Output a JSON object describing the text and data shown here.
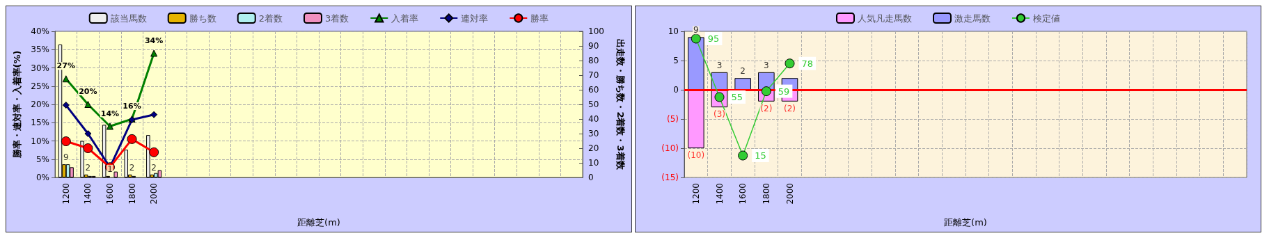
{
  "chart_data": [
    {
      "type": "bar",
      "xlabel": "距離芝(m)",
      "ylabel": "勝率・連対率・入着率(%)",
      "y2label": "出走数・勝ち数・2着数・3着数",
      "categories": [
        "1200",
        "1400",
        "1600",
        "1800",
        "2000",
        null,
        null,
        null,
        null,
        null,
        null,
        null,
        null,
        null,
        null,
        null,
        null,
        null,
        null,
        null,
        null,
        null,
        null,
        null
      ],
      "series": [
        {
          "name": "該当馬数",
          "axis": "y2",
          "color": "#eeeeee",
          "values": [
            91,
            25,
            36,
            19,
            29,
            null,
            null,
            null,
            null,
            null,
            null,
            null,
            null,
            null,
            null,
            null,
            null,
            null,
            null,
            null,
            null,
            null,
            null,
            null
          ]
        },
        {
          "name": "勝ち数",
          "axis": "y2",
          "color": "#e6b400",
          "values": [
            9,
            2,
            1,
            2,
            2,
            null,
            null,
            null,
            null,
            null,
            null,
            null,
            null,
            null,
            null,
            null,
            null,
            null,
            null,
            null,
            null,
            null,
            null,
            null
          ],
          "value_labels": [
            "9",
            "2",
            "1",
            "2",
            "2",
            null,
            null,
            null,
            null,
            null,
            null,
            null,
            null,
            null,
            null,
            null,
            null,
            null,
            null,
            null,
            null,
            null,
            null,
            null
          ]
        },
        {
          "name": "2着数",
          "axis": "y2",
          "color": "#b0f0f0",
          "values": [
            9,
            1,
            0,
            1,
            3,
            null,
            null,
            null,
            null,
            null,
            null,
            null,
            null,
            null,
            null,
            null,
            null,
            null,
            null,
            null,
            null,
            null,
            null,
            null
          ]
        },
        {
          "name": "3着数",
          "axis": "y2",
          "color": "#f090c0",
          "values": [
            7,
            1,
            4,
            0,
            5,
            null,
            null,
            null,
            null,
            null,
            null,
            null,
            null,
            null,
            null,
            null,
            null,
            null,
            null,
            null,
            null,
            null,
            null,
            null
          ]
        },
        {
          "name": "入着率",
          "type": "line",
          "color": "#008000",
          "marker": "triangle",
          "values": [
            27,
            20,
            14,
            16,
            34,
            null,
            null,
            null,
            null,
            null,
            null,
            null,
            null,
            null,
            null,
            null,
            null,
            null,
            null,
            null,
            null,
            null,
            null,
            null
          ],
          "value_labels": [
            "27%",
            "20%",
            "14%",
            "16%",
            "34%",
            null,
            null,
            null,
            null,
            null,
            null,
            null,
            null,
            null,
            null,
            null,
            null,
            null,
            null,
            null,
            null,
            null,
            null,
            null
          ]
        },
        {
          "name": "連対率",
          "type": "line",
          "color": "#000080",
          "marker": "diamond",
          "values": [
            19.8,
            12,
            2.8,
            15.8,
            17.2,
            null,
            null,
            null,
            null,
            null,
            null,
            null,
            null,
            null,
            null,
            null,
            null,
            null,
            null,
            null,
            null,
            null,
            null,
            null
          ]
        },
        {
          "name": "勝率",
          "type": "line",
          "color": "#ff0000",
          "marker": "circle",
          "values": [
            9.9,
            8,
            2.8,
            10.5,
            6.9,
            null,
            null,
            null,
            null,
            null,
            null,
            null,
            null,
            null,
            null,
            null,
            null,
            null,
            null,
            null,
            null,
            null,
            null,
            null
          ]
        }
      ],
      "ylim": [
        0,
        40
      ],
      "yticks": [
        {
          "value": 0,
          "label": "0%"
        },
        {
          "value": 5,
          "label": "5%"
        },
        {
          "value": 10,
          "label": "10%"
        },
        {
          "value": 15,
          "label": "15%"
        },
        {
          "value": 20,
          "label": "20%"
        },
        {
          "value": 25,
          "label": "25%"
        },
        {
          "value": 30,
          "label": "30%"
        },
        {
          "value": 35,
          "label": "35%"
        },
        {
          "value": 40,
          "label": "40%"
        }
      ],
      "y2lim": [
        0,
        100
      ],
      "y2ticks": [
        0,
        10,
        20,
        30,
        40,
        50,
        60,
        70,
        80,
        90,
        100
      ],
      "grid": true,
      "legend": "top"
    },
    {
      "type": "bar",
      "xlabel": "距離芝(m)",
      "stacked": true,
      "categories": [
        "1200",
        "1400",
        "1600",
        "1800",
        "2000",
        null,
        null,
        null,
        null,
        null,
        null,
        null,
        null,
        null,
        null,
        null,
        null,
        null,
        null,
        null,
        null,
        null,
        null,
        null
      ],
      "series": [
        {
          "name": "人気凡走馬数",
          "color": "#ff99ff",
          "values": [
            -10,
            -3,
            null,
            -2,
            -2,
            null,
            null,
            null,
            null,
            null,
            null,
            null,
            null,
            null,
            null,
            null,
            null,
            null,
            null,
            null,
            null,
            null,
            null,
            null
          ],
          "value_labels": [
            "(10)",
            "(3)",
            null,
            "(2)",
            "(2)",
            null,
            null,
            null,
            null,
            null,
            null,
            null,
            null,
            null,
            null,
            null,
            null,
            null,
            null,
            null,
            null,
            null,
            null,
            null
          ]
        },
        {
          "name": "激走馬数",
          "color": "#9999ff",
          "values": [
            9,
            3,
            2,
            3,
            2,
            null,
            null,
            null,
            null,
            null,
            null,
            null,
            null,
            null,
            null,
            null,
            null,
            null,
            null,
            null,
            null,
            null,
            null,
            null
          ],
          "value_labels": [
            "9",
            "3",
            "2",
            "3",
            null,
            null,
            null,
            null,
            null,
            null,
            null,
            null,
            null,
            null,
            null,
            null,
            null,
            null,
            null,
            null,
            null,
            null,
            null,
            null
          ]
        },
        {
          "name": "検定値",
          "type": "line",
          "axis": "y2",
          "color": "#33cc33",
          "marker": "circle",
          "values": [
            95,
            55,
            15,
            59,
            78,
            null,
            null,
            null,
            null,
            null,
            null,
            null,
            null,
            null,
            null,
            null,
            null,
            null,
            null,
            null,
            null,
            null,
            null,
            null
          ],
          "value_labels": [
            "95",
            "55",
            "15",
            "59",
            "78",
            null,
            null,
            null,
            null,
            null,
            null,
            null,
            null,
            null,
            null,
            null,
            null,
            null,
            null,
            null,
            null,
            null,
            null,
            null
          ]
        }
      ],
      "ylim": [
        -15,
        10
      ],
      "yticks": [
        {
          "value": -15,
          "label": "(15)"
        },
        {
          "value": -10,
          "label": "(10)"
        },
        {
          "value": -5,
          "label": "(5)"
        },
        0,
        5,
        10
      ],
      "y2lim": [
        0,
        100
      ],
      "ref_lines": [
        {
          "axis": "y",
          "value": 0,
          "color": "#ff0000"
        }
      ],
      "grid": true,
      "legend": "top"
    }
  ]
}
